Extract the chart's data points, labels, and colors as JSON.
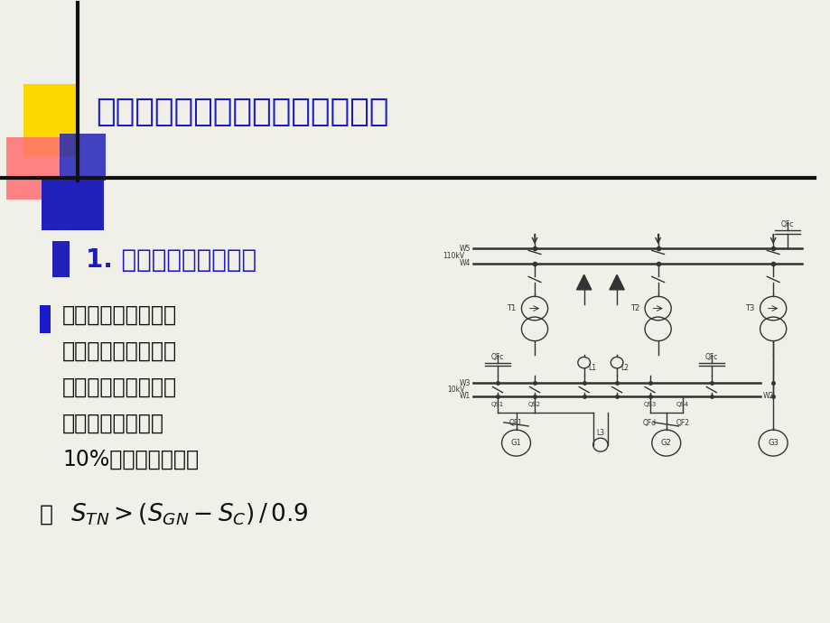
{
  "bg_color": "#f0efe8",
  "title": "一、变压器容量和台数的确定原则",
  "title_color": "#1a1acc",
  "subtitle": "1. 单元接线的主变压器",
  "subtitle_color": "#1a1acc",
  "bullet_lines": [
    "单元接线的主变压器",
    "容量应按发电机的额",
    "定容量扣除本机组的",
    "厂用负荷后，留有",
    "10%的裕度来确定。"
  ],
  "text_color": "#111111",
  "deco_yellow": [
    0.028,
    0.75,
    0.065,
    0.115
  ],
  "deco_red": [
    0.008,
    0.68,
    0.065,
    0.1
  ],
  "deco_blue1": [
    0.072,
    0.71,
    0.055,
    0.075
  ],
  "deco_blue2": [
    0.05,
    0.63,
    0.075,
    0.085
  ],
  "vline_x": 0.093,
  "hline_y": 0.715,
  "line_color": "#111111",
  "subtitle_sq": [
    0.063,
    0.555,
    0.021,
    0.058
  ],
  "bullet_sq_color": "#1a1acc"
}
